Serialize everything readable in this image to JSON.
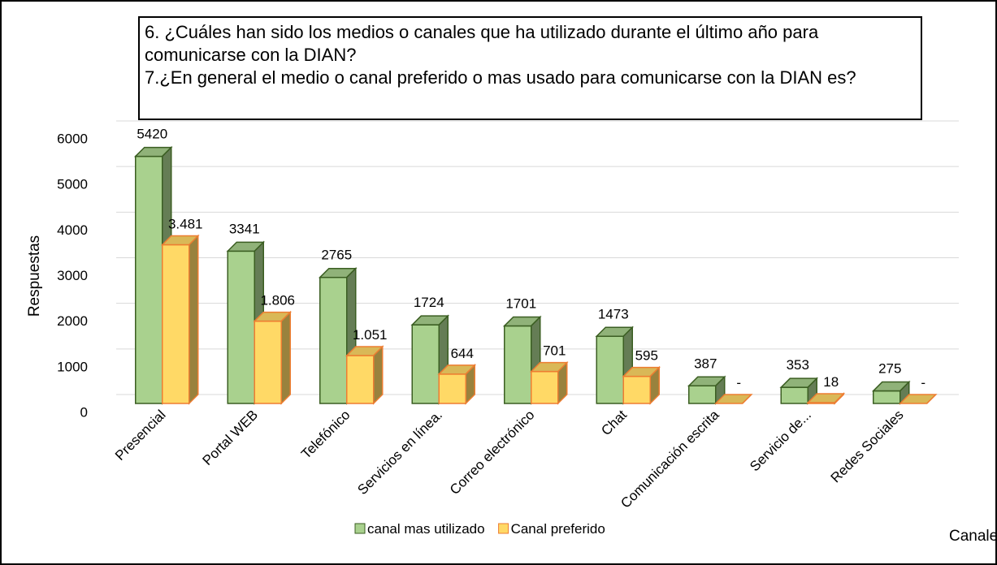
{
  "chart_data": {
    "type": "bar3d",
    "title": "6. ¿Cuáles han sido los medios o canales que ha utilizado durante el último año para comunicarse con la DIAN?",
    "subtitle": "7.¿En general el medio o canal preferido o mas usado para comunicarse con la DIAN es?",
    "y_label": "Respuestas",
    "x_label": "Canales",
    "categories": [
      "Presencial",
      "Portal WEB",
      "Telefónico",
      "Servicios en línea.",
      "Correo electrónico",
      "Chat",
      "Comunicación escrita",
      "Servicio de...",
      "Redes Sociales"
    ],
    "series": [
      {
        "name": "canal mas utilizado",
        "color": "#a9d18e",
        "values": [
          5420,
          3341,
          2765,
          1724,
          1701,
          1473,
          387,
          353,
          275
        ]
      },
      {
        "name": "Canal preferido",
        "color": "#ffd966",
        "values": [
          3481,
          1806,
          1051,
          644,
          701,
          595,
          0,
          18,
          0
        ],
        "value_labels": [
          "3.481",
          "1.806",
          "1.051",
          "644",
          "701",
          "595",
          "-",
          "18",
          "-"
        ]
      }
    ],
    "ylim": [
      0,
      6000
    ],
    "yticks": [
      0,
      1000,
      2000,
      3000,
      4000,
      5000,
      6000
    ],
    "grid": true,
    "legend": "bottom"
  }
}
